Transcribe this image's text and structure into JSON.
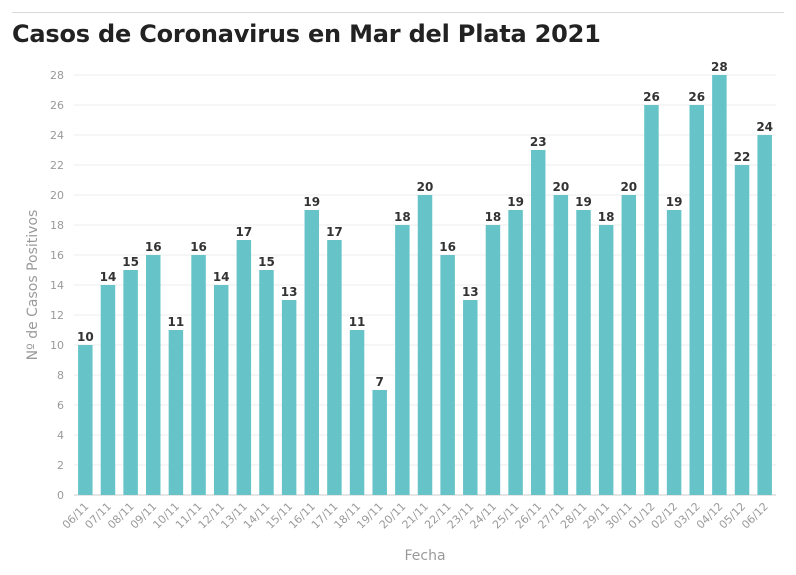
{
  "chart_data": {
    "type": "bar",
    "title": "Casos de Coronavirus en Mar del Plata 2021",
    "xlabel": "Fecha",
    "ylabel": "Nº de Casos Positivos",
    "ylim": [
      0,
      28
    ],
    "yticks": [
      0,
      2,
      4,
      6,
      8,
      10,
      12,
      14,
      16,
      18,
      20,
      22,
      24,
      26,
      28
    ],
    "grid": true,
    "bar_color": "#66c4c9",
    "categories": [
      "06/11",
      "07/11",
      "08/11",
      "09/11",
      "10/11",
      "11/11",
      "12/11",
      "13/11",
      "14/11",
      "15/11",
      "16/11",
      "17/11",
      "18/11",
      "19/11",
      "20/11",
      "21/11",
      "22/11",
      "23/11",
      "24/11",
      "25/11",
      "26/11",
      "27/11",
      "28/11",
      "29/11",
      "30/11",
      "01/12",
      "02/12",
      "03/12",
      "04/12",
      "05/12",
      "06/12"
    ],
    "values": [
      10,
      14,
      15,
      16,
      11,
      16,
      14,
      17,
      15,
      13,
      19,
      17,
      11,
      7,
      18,
      20,
      16,
      13,
      18,
      19,
      23,
      20,
      19,
      18,
      20,
      26,
      19,
      26,
      28,
      22,
      24
    ]
  }
}
